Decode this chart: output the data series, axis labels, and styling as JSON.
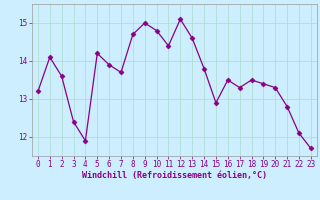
{
  "x": [
    0,
    1,
    2,
    3,
    4,
    5,
    6,
    7,
    8,
    9,
    10,
    11,
    12,
    13,
    14,
    15,
    16,
    17,
    18,
    19,
    20,
    21,
    22,
    23
  ],
  "y": [
    13.2,
    14.1,
    13.6,
    12.4,
    11.9,
    14.2,
    13.9,
    13.7,
    14.7,
    15.0,
    14.8,
    14.4,
    15.1,
    14.6,
    13.8,
    12.9,
    13.5,
    13.3,
    13.5,
    13.4,
    13.3,
    12.8,
    12.1,
    11.7
  ],
  "line_color": "#880088",
  "marker": "D",
  "markersize": 2.5,
  "linewidth": 0.9,
  "bg_color": "#cceeff",
  "grid_color": "#aaddcc",
  "xlabel": "Windchill (Refroidissement éolien,°C)",
  "ylim": [
    11.5,
    15.5
  ],
  "yticks": [
    12,
    13,
    14,
    15
  ],
  "xticks": [
    0,
    1,
    2,
    3,
    4,
    5,
    6,
    7,
    8,
    9,
    10,
    11,
    12,
    13,
    14,
    15,
    16,
    17,
    18,
    19,
    20,
    21,
    22,
    23
  ],
  "tick_label_fontsize": 5.5,
  "xlabel_fontsize": 6.0
}
